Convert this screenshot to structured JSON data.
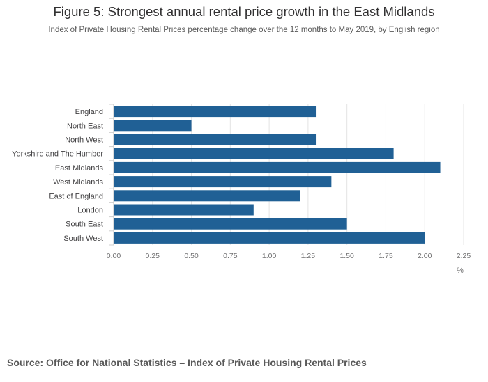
{
  "figure": {
    "title": "Figure 5: Strongest annual rental price growth in the East Midlands",
    "subtitle": "Index of Private Housing Rental Prices percentage change over the 12 months to May 2019, by English region",
    "source": "Source: Office for National Statistics – Index of Private Housing Rental Prices"
  },
  "chart_data": {
    "type": "bar",
    "orientation": "horizontal",
    "title": "Figure 5: Strongest annual rental price growth in the East Midlands",
    "subtitle": "Index of Private Housing Rental Prices percentage change over the 12 months to May 2019, by English region",
    "categories": [
      "England",
      "North East",
      "North West",
      "Yorkshire and The Humber",
      "East Midlands",
      "West Midlands",
      "East of England",
      "London",
      "South East",
      "South West"
    ],
    "values": [
      1.3,
      0.5,
      1.3,
      1.8,
      2.1,
      1.4,
      1.2,
      0.9,
      1.5,
      2.0
    ],
    "xlabel": "%",
    "ylabel": "",
    "xlim": [
      0,
      2.25
    ],
    "xticks": [
      "0.00",
      "0.25",
      "0.50",
      "0.75",
      "1.00",
      "1.25",
      "1.50",
      "1.75",
      "2.00",
      "2.25"
    ],
    "grid": true,
    "bar_color": "#206095"
  }
}
